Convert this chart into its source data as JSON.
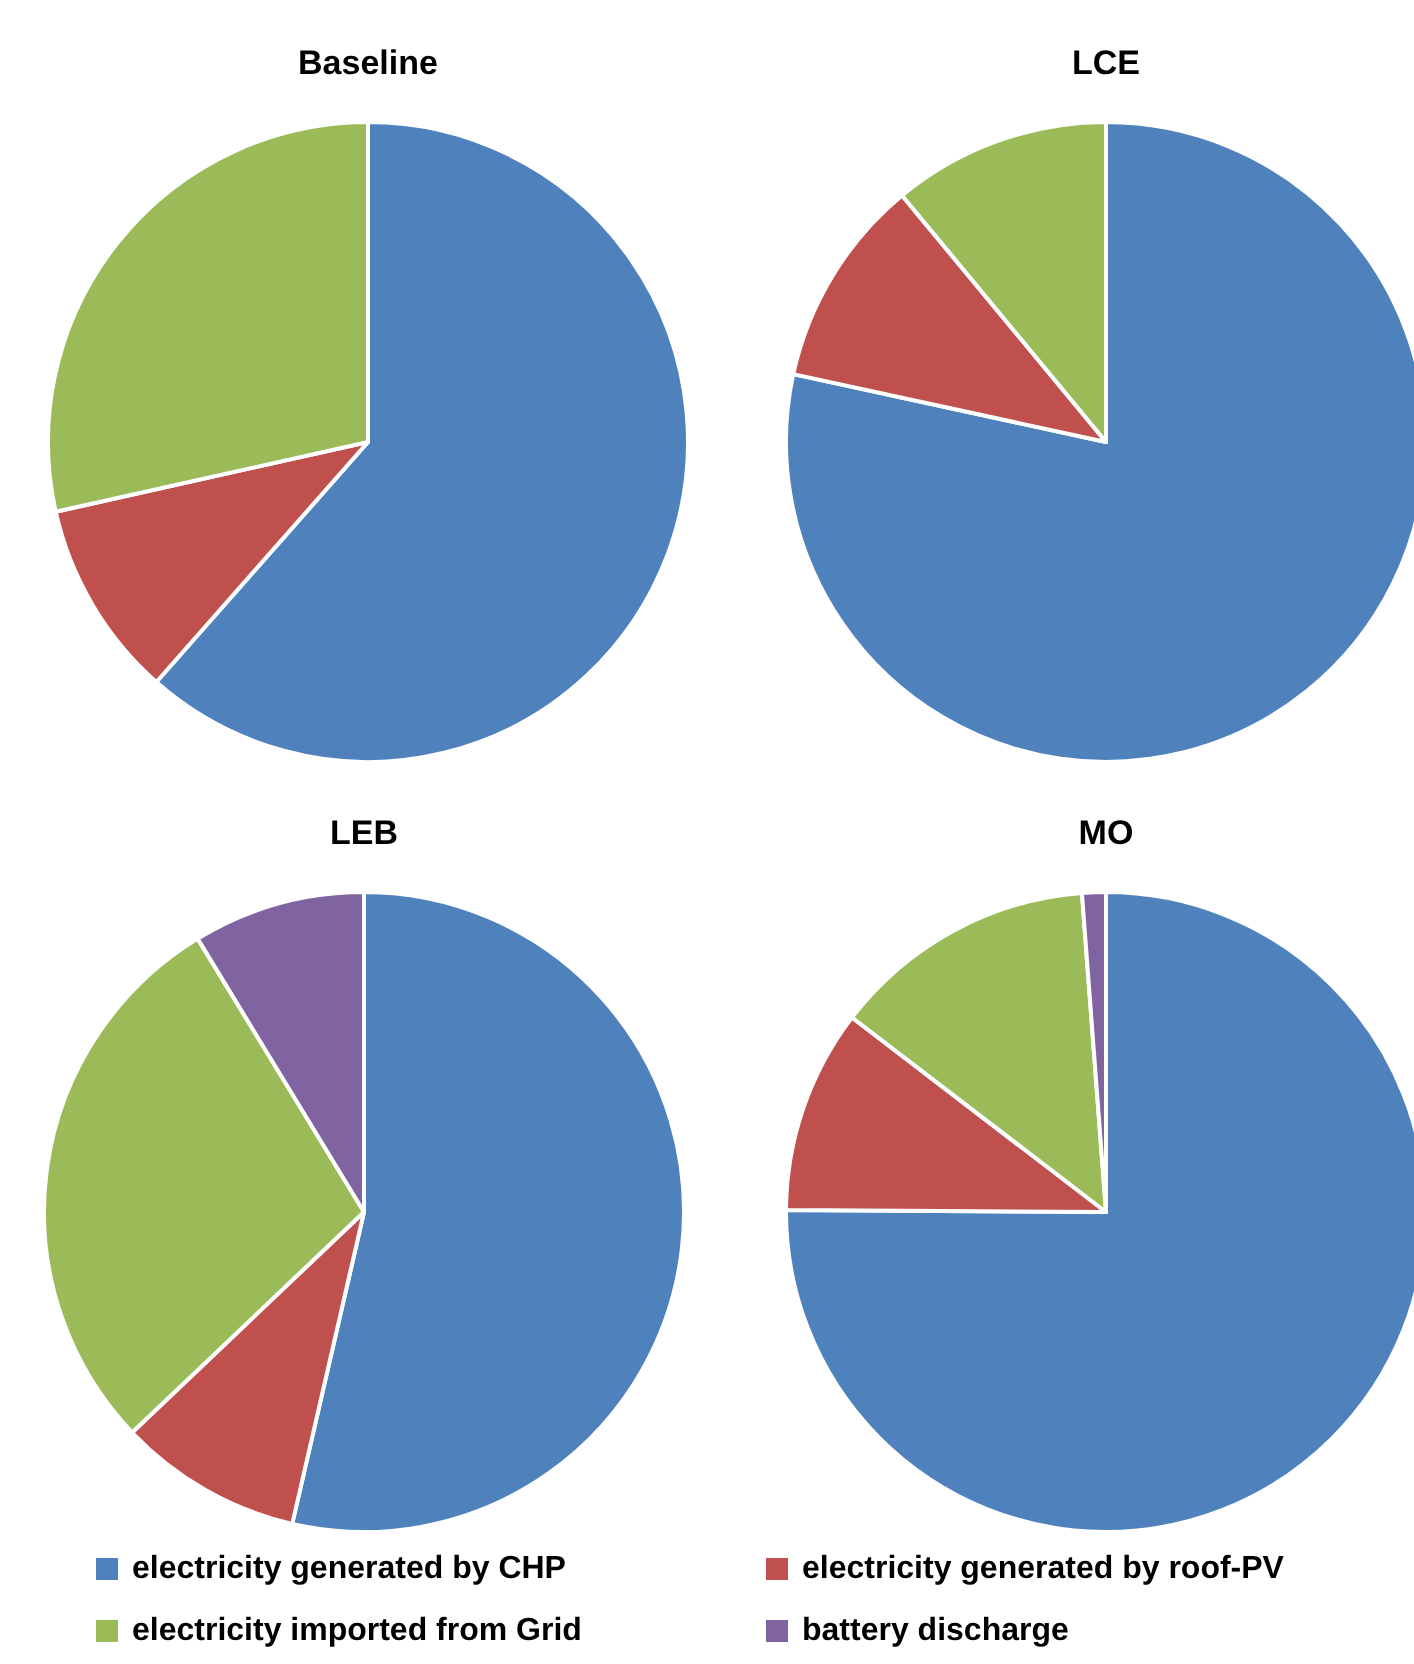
{
  "chart_data": [
    {
      "type": "pie",
      "title": "Baseline",
      "categories": [
        null,
        null,
        null
      ],
      "values": [
        61.5,
        10,
        28.5
      ],
      "colors": [
        "#4f81bd",
        "#c0504d",
        "#9bbb59"
      ]
    },
    {
      "type": "pie",
      "title": "LCE",
      "categories": [
        null,
        null,
        null
      ],
      "values": [
        78.4,
        10.6,
        11
      ],
      "colors": [
        "#4f81bd",
        "#c0504d",
        "#9bbb59"
      ]
    },
    {
      "type": "pie",
      "title": "LEB",
      "categories": [
        null,
        null,
        null,
        null
      ],
      "values": [
        53.6,
        9.3,
        28.4,
        8.7
      ],
      "colors": [
        "#4f81bd",
        "#c0504d",
        "#9bbb59",
        "#8064a2"
      ]
    },
    {
      "type": "pie",
      "title": "MO",
      "categories": [
        "electricity generated by CHP",
        "electricity generated by roof-PV",
        "electricity imported from Grid",
        "battery discharge"
      ],
      "values": [
        75.1,
        10.3,
        13.4,
        1.2
      ],
      "colors": [
        "#4f81bd",
        "#c0504d",
        "#9bbb59",
        "#8064a2"
      ],
      "legend": "bottom"
    }
  ]
}
